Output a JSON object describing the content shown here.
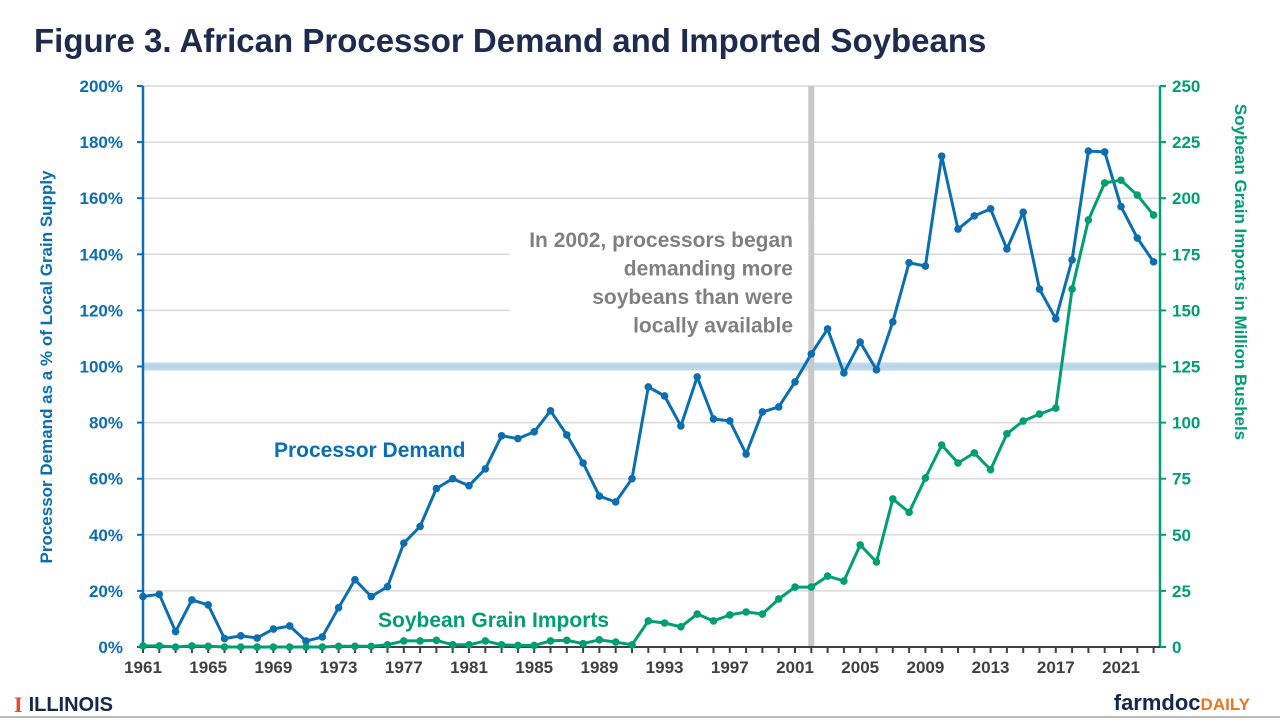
{
  "title": "Figure 3. African Processor Demand and Imported Soybeans",
  "footer": {
    "left_logo": "ILLINOIS",
    "right_logo_a": "farmdoc",
    "right_logo_b": "DAILY"
  },
  "colors": {
    "demand": "#0a6eb0",
    "imports": "#009e73",
    "title": "#1d2b4f",
    "annotation": "#808080",
    "reference_band": "#a9cbe5",
    "vline": "#c8c8c8"
  },
  "chart_data": {
    "type": "line",
    "title": "Figure 3. African Processor Demand and Imported Soybeans",
    "xlabel": "",
    "ylabel": "Processor Demand as a % of Local Grain Supply",
    "y2label": "Soybean Grain Imports in Million Bushels",
    "xlim": [
      1961,
      2023
    ],
    "ylim": [
      0,
      200
    ],
    "y2lim": [
      0,
      250
    ],
    "x_tick_labels": [
      "1961",
      "1965",
      "1969",
      "1973",
      "1977",
      "1981",
      "1985",
      "1989",
      "1993",
      "1997",
      "2001",
      "2005",
      "2009",
      "2013",
      "2017",
      "2021"
    ],
    "y_tick_labels": [
      "0%",
      "20%",
      "40%",
      "60%",
      "80%",
      "100%",
      "120%",
      "140%",
      "160%",
      "180%",
      "200%"
    ],
    "y2_tick_labels": [
      "0",
      "25",
      "50",
      "75",
      "100",
      "125",
      "150",
      "175",
      "200",
      "225",
      "250"
    ],
    "grid": true,
    "reference_line": {
      "axis": "y",
      "value": 100
    },
    "vertical_marker": {
      "x": 2002
    },
    "annotation": [
      "In 2002, processors began",
      "demanding more",
      "soybeans than were",
      "locally available"
    ],
    "x": [
      1961,
      1962,
      1963,
      1964,
      1965,
      1966,
      1967,
      1968,
      1969,
      1970,
      1971,
      1972,
      1973,
      1974,
      1975,
      1976,
      1977,
      1978,
      1979,
      1980,
      1981,
      1982,
      1983,
      1984,
      1985,
      1986,
      1987,
      1988,
      1989,
      1990,
      1991,
      1992,
      1993,
      1994,
      1995,
      1996,
      1997,
      1998,
      1999,
      2000,
      2001,
      2002,
      2003,
      2004,
      2005,
      2006,
      2007,
      2008,
      2009,
      2010,
      2011,
      2012,
      2013,
      2014,
      2015,
      2016,
      2017,
      2018,
      2019,
      2020,
      2021,
      2022,
      2023
    ],
    "series": [
      {
        "name": "Processor Demand",
        "axis": "left",
        "values": [
          18,
          18.8,
          5.5,
          16.8,
          15,
          3,
          4,
          3.2,
          6.4,
          7.5,
          2.1,
          3.6,
          14,
          24,
          18,
          21.5,
          37,
          43,
          56.5,
          60,
          57.5,
          63.5,
          75.3,
          74.3,
          76.7,
          84.2,
          75.6,
          65.6,
          53.8,
          51.7,
          60,
          92.7,
          89.5,
          78.8,
          96.3,
          81.3,
          80.6,
          68.8,
          83.8,
          85.6,
          94.5,
          104.5,
          113.4,
          97.7,
          108.7,
          98.8,
          115.9,
          137,
          135.8,
          175,
          149,
          153.7,
          156.2,
          141.9,
          155,
          127.6,
          117,
          138,
          176.8,
          176.5,
          157,
          145.8,
          137.3
        ]
      },
      {
        "name": "Soybean Grain Imports",
        "axis": "right",
        "values": [
          0.5,
          0.5,
          0,
          0.5,
          0.3,
          0,
          0,
          0,
          0,
          0,
          0,
          0,
          0.3,
          0.3,
          0.3,
          1,
          2.7,
          2.7,
          3,
          1,
          1,
          2.7,
          1,
          0.7,
          0.7,
          2.7,
          3,
          1.5,
          3.2,
          2.2,
          1,
          11.6,
          10.7,
          9,
          14.7,
          11.6,
          14.3,
          15.6,
          14.7,
          21.4,
          26.7,
          26.7,
          31.6,
          29.4,
          45.5,
          37.9,
          66,
          60,
          75.3,
          90,
          82,
          86.5,
          79,
          95,
          100.7,
          103.8,
          106.5,
          159.5,
          190.3,
          206.8,
          208,
          201.4,
          192.5
        ]
      }
    ]
  }
}
